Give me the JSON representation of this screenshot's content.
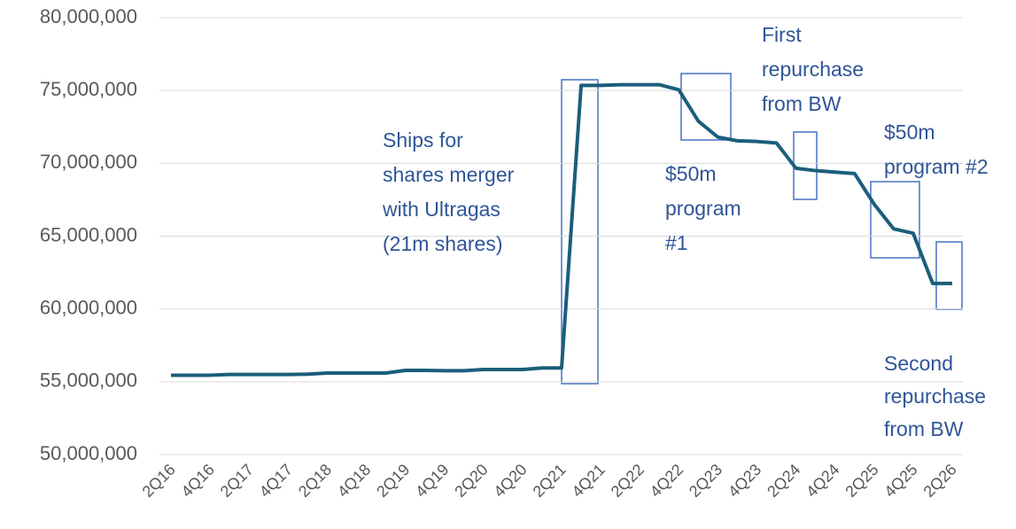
{
  "chart_data": {
    "type": "line",
    "categories": [
      "2Q16",
      null,
      "4Q16",
      null,
      "2Q17",
      null,
      "4Q17",
      null,
      "2Q18",
      null,
      "4Q18",
      null,
      "2Q19",
      null,
      "4Q19",
      null,
      "2Q20",
      null,
      "4Q20",
      null,
      "2Q21",
      null,
      "4Q21",
      null,
      "2Q22",
      null,
      "4Q22",
      null,
      "2Q23",
      null,
      "4Q23",
      null,
      "2Q24",
      null,
      "4Q24",
      null,
      "2Q25",
      null,
      "4Q25",
      null,
      "2Q26"
    ],
    "series": [
      {
        "color": "#1b5e7b",
        "values": [
          55450000,
          55450000,
          55450000,
          55500000,
          55500000,
          55500000,
          55500000,
          55520000,
          55600000,
          55600000,
          55600000,
          55600000,
          55780000,
          55780000,
          55760000,
          55760000,
          55840000,
          55840000,
          55840000,
          55950000,
          55950000,
          75350000,
          75350000,
          75400000,
          75400000,
          75400000,
          75050000,
          72900000,
          71800000,
          71550000,
          71500000,
          71400000,
          69660000,
          69500000,
          69400000,
          69300000,
          67200000,
          65500000,
          65200000,
          61750000,
          61750000
        ]
      }
    ],
    "ylim": [
      50000000,
      80000000
    ],
    "yticks": [
      {
        "value": 50000000,
        "label": "50,000,000"
      },
      {
        "value": 55000000,
        "label": "55,000,000"
      },
      {
        "value": 60000000,
        "label": "60,000,000"
      },
      {
        "value": 65000000,
        "label": "65,000,000"
      },
      {
        "value": 70000000,
        "label": "70,000,000"
      },
      {
        "value": 75000000,
        "label": "75,000,000"
      },
      {
        "value": 80000000,
        "label": "80,000,000"
      }
    ],
    "grid": true,
    "annotations": [
      [
        "Ships for",
        "shares merger",
        "with Ultragas",
        "(21m shares)"
      ],
      [
        "$50m",
        "program",
        "#1"
      ],
      [
        "First",
        "repurchase",
        "from BW"
      ],
      [
        "$50m",
        "program #2"
      ],
      [
        "Second",
        "repurchase",
        "from BW"
      ]
    ]
  }
}
